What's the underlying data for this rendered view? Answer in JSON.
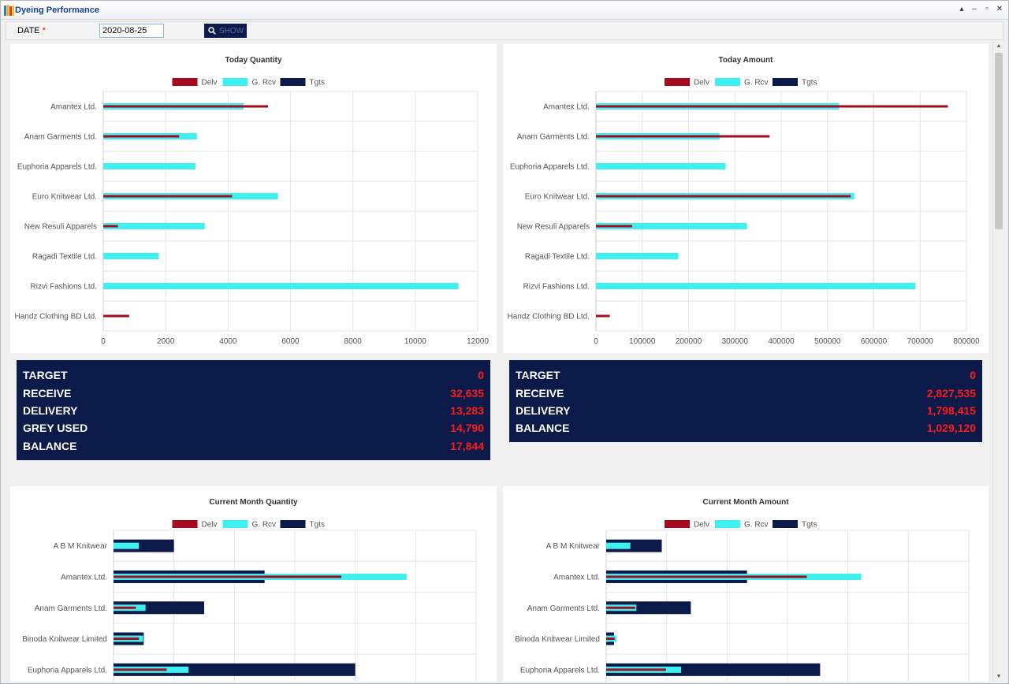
{
  "window": {
    "title": "Dyeing Performance"
  },
  "toolbar": {
    "date_label": "DATE",
    "required_mark": "*",
    "date_value": "2020-08-25",
    "show_label": "SHOW"
  },
  "colors": {
    "delv": "#a50a1e",
    "grcv": "#3ef0f0",
    "tgts": "#0b1a48",
    "summary_bg": "#0b1a48",
    "summary_value": "#ff1a1a"
  },
  "legend": [
    "Delv",
    "G. Rcv",
    "Tgts"
  ],
  "summaries": {
    "qty": [
      {
        "label": "TARGET",
        "value": "0"
      },
      {
        "label": "RECEIVE",
        "value": "32,635"
      },
      {
        "label": "DELIVERY",
        "value": "13,283"
      },
      {
        "label": "GREY USED",
        "value": "14,790"
      },
      {
        "label": "BALANCE",
        "value": "17,844"
      }
    ],
    "amt": [
      {
        "label": "TARGET",
        "value": "0"
      },
      {
        "label": "RECEIVE",
        "value": "2,827,535"
      },
      {
        "label": "DELIVERY",
        "value": "1,798,415"
      },
      {
        "label": "BALANCE",
        "value": "1,029,120"
      }
    ]
  },
  "chart_data": [
    {
      "type": "bar",
      "title": "Today Quantity",
      "orientation": "horizontal",
      "categories": [
        "Amantex Ltd.",
        "Anam Garments Ltd.",
        "Euphoria Apparels Ltd.",
        "Euro Knitwear Ltd.",
        "New Resuli Apparels",
        "Ragadi Textile Ltd.",
        "Rizvi Fashions Ltd.",
        "Handz Clothing BD Ltd."
      ],
      "series": [
        {
          "name": "G. Rcv",
          "values": [
            4500,
            3000,
            2950,
            5600,
            3250,
            1780,
            11380,
            0
          ]
        },
        {
          "name": "Delv",
          "values": [
            5280,
            2430,
            0,
            4130,
            470,
            0,
            0,
            830
          ]
        },
        {
          "name": "Tgts",
          "values": [
            0,
            0,
            0,
            0,
            0,
            0,
            0,
            0
          ]
        }
      ],
      "xlim": [
        0,
        12000
      ],
      "ticks": [
        0,
        2000,
        4000,
        6000,
        8000,
        10000,
        12000
      ],
      "legend_position": "top"
    },
    {
      "type": "bar",
      "title": "Today Amount",
      "orientation": "horizontal",
      "categories": [
        "Amantex Ltd.",
        "Anam Garments Ltd.",
        "Euphoria Apparels Ltd.",
        "Euro Knitwear Ltd.",
        "New Resuli Apparels",
        "Ragadi Textile Ltd.",
        "Rizvi Fashions Ltd.",
        "Handz Clothing BD Ltd."
      ],
      "series": [
        {
          "name": "G. Rcv",
          "values": [
            525000,
            267000,
            280000,
            558000,
            326000,
            178000,
            690000,
            0
          ]
        },
        {
          "name": "Delv",
          "values": [
            760000,
            375000,
            0,
            550000,
            78000,
            0,
            0,
            30000
          ]
        },
        {
          "name": "Tgts",
          "values": [
            0,
            0,
            0,
            0,
            0,
            0,
            0,
            0
          ]
        }
      ],
      "xlim": [
        0,
        800000
      ],
      "ticks": [
        0,
        100000,
        200000,
        300000,
        400000,
        500000,
        600000,
        700000,
        800000
      ],
      "legend_position": "top"
    },
    {
      "type": "bar",
      "title": "Current Month Quantity",
      "orientation": "horizontal",
      "categories": [
        "A B M Knitwear",
        "Amantex Ltd.",
        "Anam Garments Ltd.",
        "Binoda Knitwear Limited",
        "Euphoria Apparels Ltd."
      ],
      "series": [
        {
          "name": "Tgts",
          "values": [
            1000,
            2500,
            1500,
            500,
            4000
          ]
        },
        {
          "name": "G. Rcv",
          "values": [
            420,
            4850,
            530,
            490,
            1240
          ]
        },
        {
          "name": "Delv",
          "values": [
            0,
            3770,
            370,
            420,
            880
          ]
        }
      ],
      "xlim": [
        0,
        6000
      ],
      "legend_position": "top"
    },
    {
      "type": "bar",
      "title": "Current Month Amount",
      "orientation": "horizontal",
      "categories": [
        "A B M Knitwear",
        "Amantex Ltd.",
        "Anam Garments Ltd.",
        "Binoda Knitwear Limited",
        "Euphoria Apparels Ltd."
      ],
      "series": [
        {
          "name": "Tgts",
          "values": [
            92000,
            233000,
            140000,
            13000,
            354000
          ]
        },
        {
          "name": "G. Rcv",
          "values": [
            40000,
            422000,
            50000,
            17000,
            124000
          ]
        },
        {
          "name": "Delv",
          "values": [
            0,
            332000,
            48000,
            14000,
            99000
          ]
        }
      ],
      "xlim": [
        0,
        600000
      ],
      "legend_position": "top"
    }
  ]
}
